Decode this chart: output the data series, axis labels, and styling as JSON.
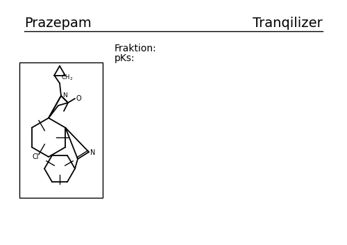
{
  "title_left": "Prazepam",
  "title_right": "Tranqilizer",
  "fraktion_label": "Fraktion:",
  "pks_label": "pKs:",
  "background_color": "#ffffff",
  "box_color": "#000000",
  "text_color": "#000000",
  "title_fontsize": 14,
  "label_fontsize": 10,
  "chem_fontsize": 8
}
